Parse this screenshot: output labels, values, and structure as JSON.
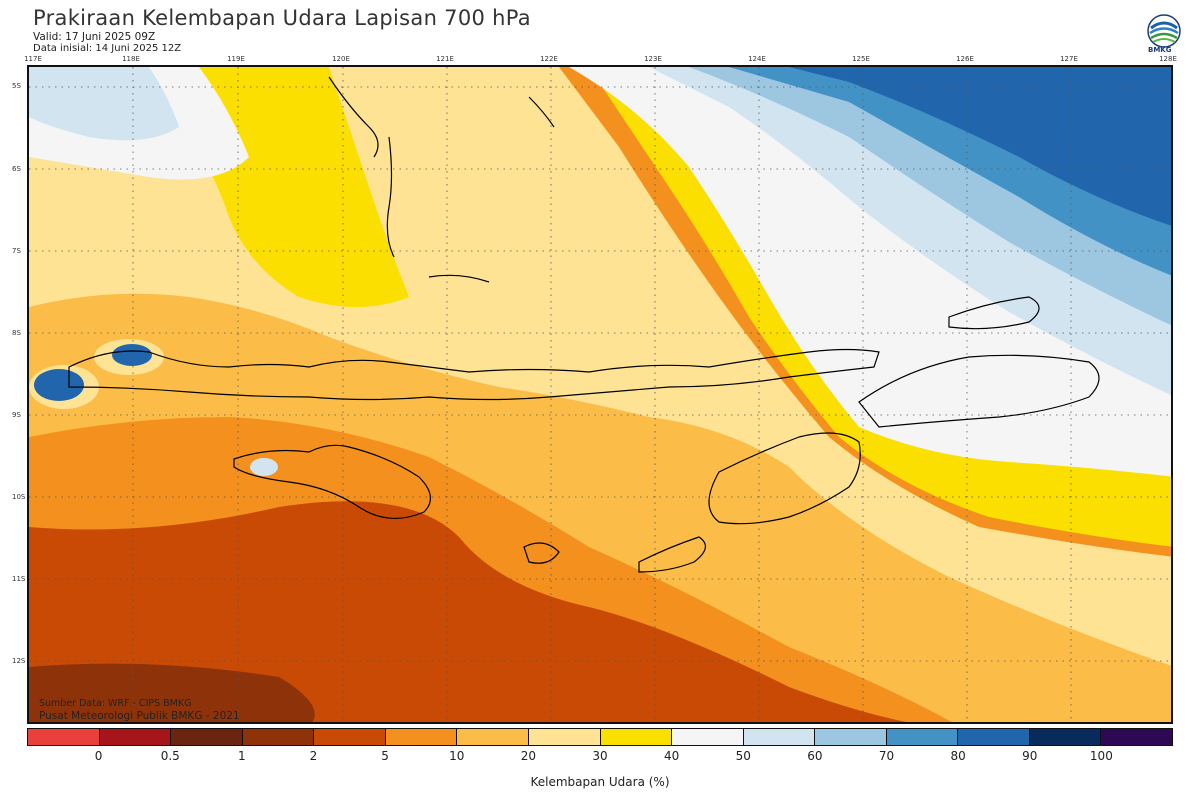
{
  "header": {
    "title": "Prakiraan Kelembapan Udara Lapisan 700 hPa",
    "valid": "Valid: 17 Juni 2025 09Z",
    "init": "Data inisial: 14 Juni 2025 12Z"
  },
  "logo": {
    "text": "BMKG"
  },
  "map": {
    "longitude_labels": [
      "117E",
      "118E",
      "119E",
      "120E",
      "121E",
      "122E",
      "123E",
      "124E",
      "125E",
      "126E",
      "127E",
      "128E"
    ],
    "latitude_labels": [
      "5S",
      "6S",
      "7S",
      "8S",
      "9S",
      "10S",
      "11S",
      "12S"
    ],
    "credit_source": "Sumber Data: WRF - CIPS BMKG",
    "credit_center": "Pusat Meteorologi Publik BMKG - 2021"
  },
  "colorbar": {
    "title": "Kelembapan Udara (%)",
    "ticks": [
      "0",
      "0.5",
      "1",
      "2",
      "5",
      "10",
      "20",
      "30",
      "40",
      "50",
      "60",
      "70",
      "80",
      "90",
      "100"
    ],
    "colors": [
      "#e8403a",
      "#a5151a",
      "#6b2410",
      "#8e3309",
      "#c94a05",
      "#f4901d",
      "#fbbd48",
      "#fde393",
      "#fbdf00",
      "#f5f5f5",
      "#d1e4f0",
      "#9dc7e0",
      "#4292c6",
      "#2166ac",
      "#082a5c",
      "#2e0854"
    ]
  }
}
